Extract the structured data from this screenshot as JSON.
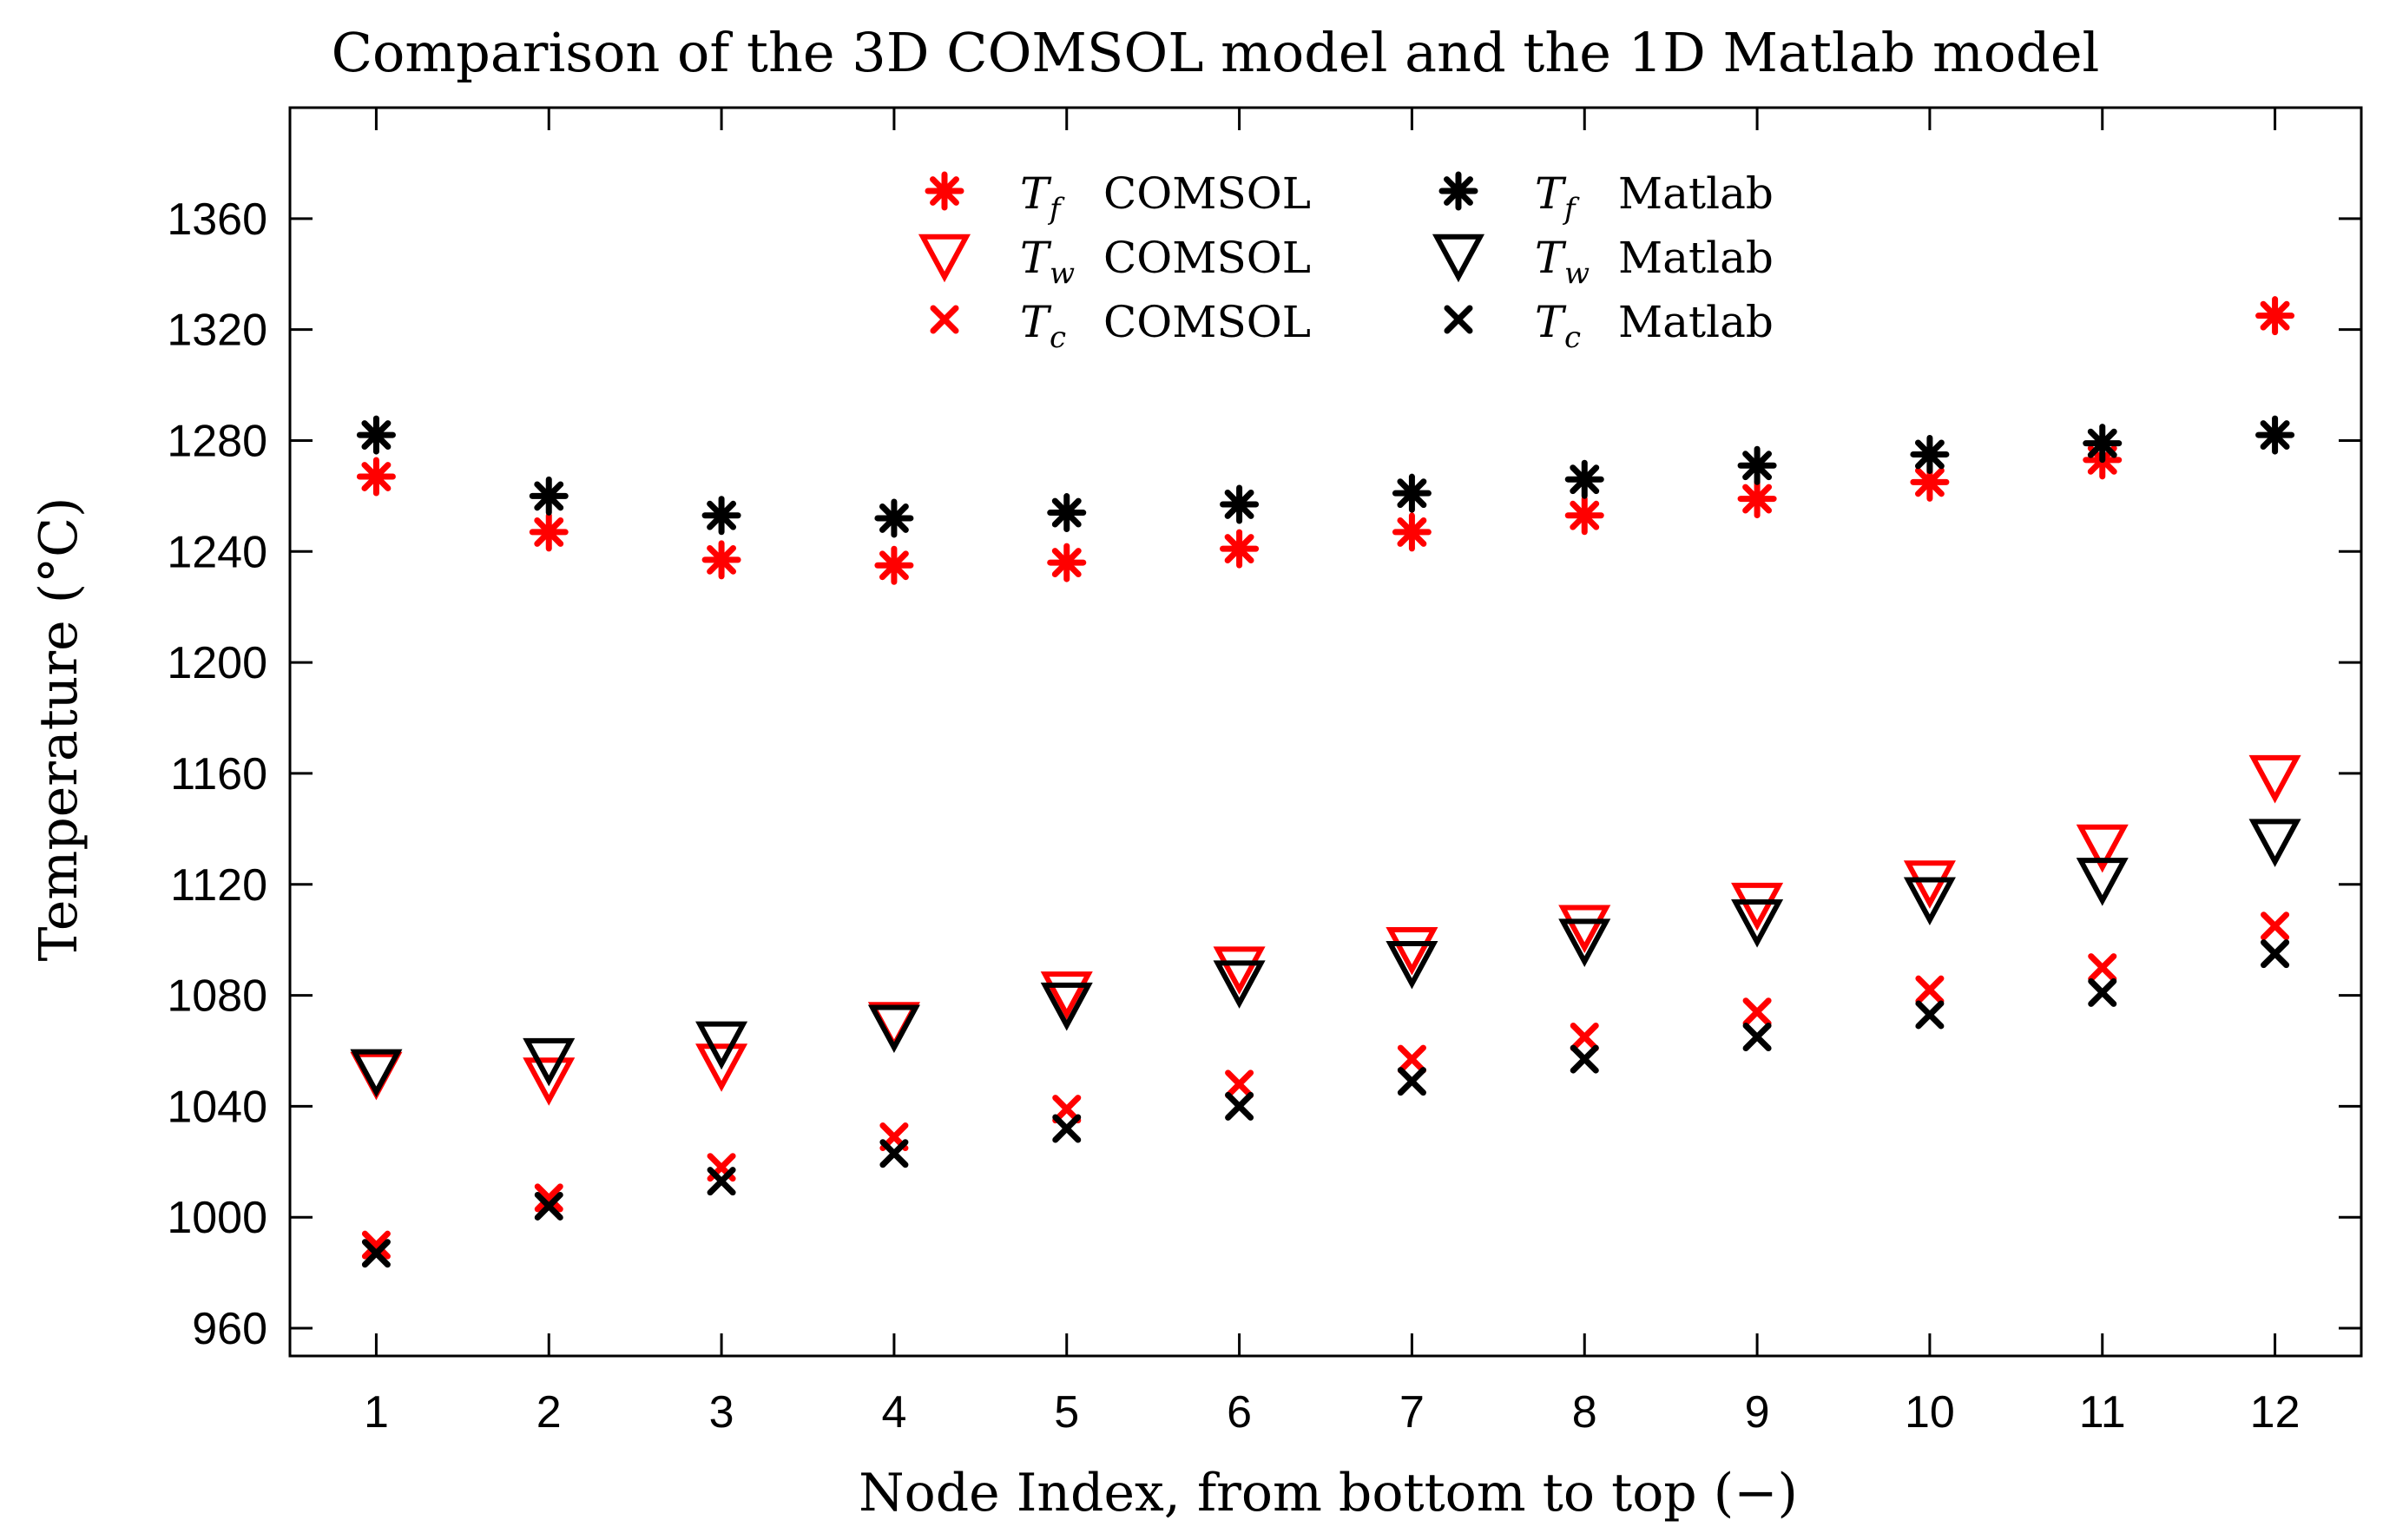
{
  "chart_data": {
    "type": "scatter",
    "title": "Comparison of the 3D COMSOL model and the 1D Matlab model",
    "xlabel": "Node Index, from bottom to top (−)",
    "ylabel": "Temperature (°C)",
    "xlim": [
      0.5,
      12.5
    ],
    "ylim": [
      950,
      1400
    ],
    "xticks": [
      "1",
      "2",
      "3",
      "4",
      "5",
      "6",
      "7",
      "8",
      "9",
      "10",
      "11",
      "12"
    ],
    "yticks": [
      "960",
      "1000",
      "1040",
      "1080",
      "1120",
      "1160",
      "1200",
      "1240",
      "1280",
      "1320",
      "1360"
    ],
    "grid": false,
    "legend_position": "top-center",
    "x": [
      1,
      2,
      3,
      4,
      5,
      6,
      7,
      8,
      9,
      10,
      11,
      12
    ],
    "series": [
      {
        "name": "T_f COMSOL",
        "symbol": "T",
        "sub": "f",
        "label": "COMSOL",
        "marker": "asterisk",
        "color": "#ff0000",
        "values": [
          1267,
          1247,
          1237,
          1235,
          1236,
          1241,
          1247,
          1253,
          1259,
          1265,
          1273,
          1325
        ]
      },
      {
        "name": "T_w COMSOL",
        "symbol": "T",
        "sub": "w",
        "label": "COMSOL",
        "marker": "triangle-down",
        "color": "#ff0000",
        "values": [
          1052,
          1050,
          1055,
          1070,
          1081,
          1090,
          1097,
          1105,
          1113,
          1121,
          1134,
          1159
        ]
      },
      {
        "name": "T_c COMSOL",
        "symbol": "T",
        "sub": "c",
        "label": "COMSOL",
        "marker": "x",
        "color": "#ff0000",
        "values": [
          990,
          1007,
          1018,
          1029,
          1039,
          1048,
          1057,
          1065,
          1074,
          1082,
          1090,
          1105
        ]
      },
      {
        "name": "T_f Matlab",
        "symbol": "T",
        "sub": "f",
        "label": "Matlab",
        "marker": "asterisk",
        "color": "#000000",
        "values": [
          1282,
          1260,
          1253,
          1252,
          1254,
          1257,
          1261,
          1266,
          1271,
          1275,
          1279,
          1282
        ]
      },
      {
        "name": "T_w Matlab",
        "symbol": "T",
        "sub": "w",
        "label": "Matlab",
        "marker": "triangle-down",
        "color": "#000000",
        "values": [
          1053,
          1057,
          1063,
          1069,
          1077,
          1085,
          1092,
          1100,
          1107,
          1115,
          1122,
          1136
        ]
      },
      {
        "name": "T_c Matlab",
        "symbol": "T",
        "sub": "c",
        "label": "Matlab",
        "marker": "x",
        "color": "#000000",
        "values": [
          987,
          1004,
          1013,
          1023,
          1032,
          1040,
          1049,
          1057,
          1065,
          1073,
          1081,
          1095
        ]
      }
    ]
  }
}
